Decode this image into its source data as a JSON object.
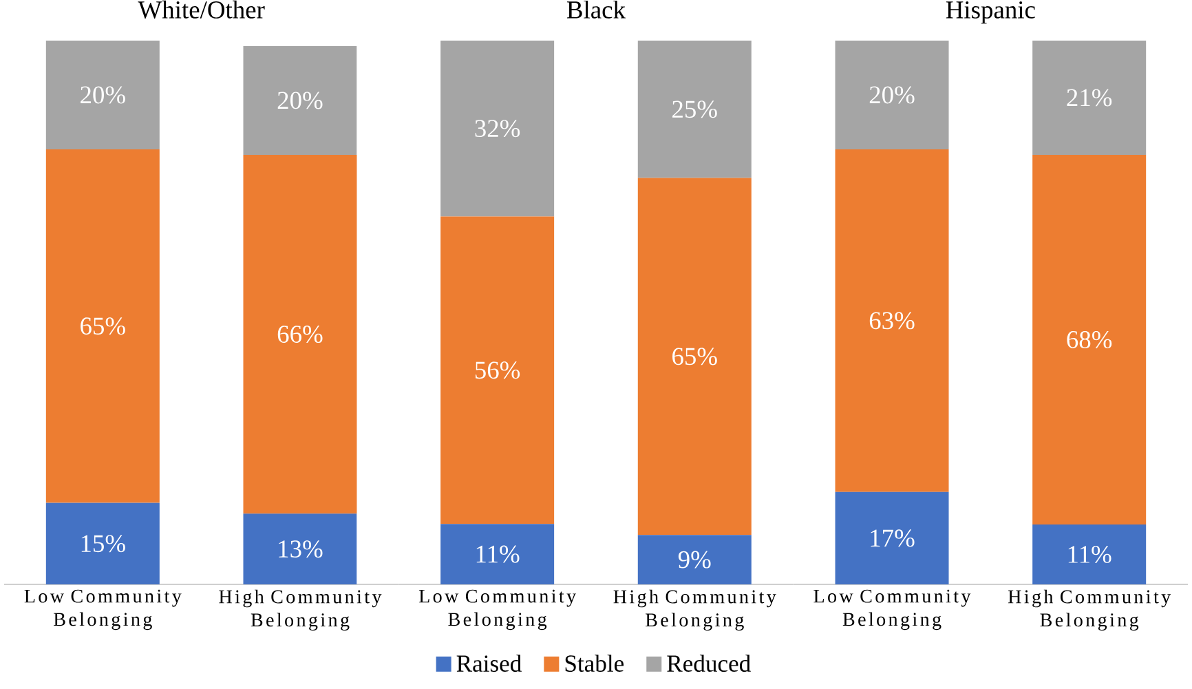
{
  "chart_data": [
    {
      "type": "bar",
      "title": "White/Other",
      "stacked": true,
      "categories": [
        "Low Community Belonging",
        "High Community Belonging"
      ],
      "series": [
        {
          "color": "#4472c4",
          "values": [
            15,
            13
          ],
          "value_labels": [
            "15%",
            "13%"
          ]
        },
        {
          "color": "#ed7d31",
          "values": [
            65,
            66
          ],
          "value_labels": [
            "65%",
            "66%"
          ]
        },
        {
          "color": "#a5a5a5",
          "values": [
            20,
            20
          ],
          "value_labels": [
            "20%",
            "20%"
          ]
        }
      ]
    },
    {
      "type": "bar",
      "title": "Black",
      "stacked": true,
      "legend": "bottom",
      "categories": [
        "Low Community Belonging",
        "High Community Belonging"
      ],
      "series": [
        {
          "name": "Raised",
          "color": "#4472c4",
          "values": [
            11,
            9
          ],
          "value_labels": [
            "11%",
            "9%"
          ]
        },
        {
          "name": "Stable",
          "color": "#ed7d31",
          "values": [
            56,
            65
          ],
          "value_labels": [
            "56%",
            "65%"
          ]
        },
        {
          "name": "Reduced",
          "color": "#a5a5a5",
          "values": [
            32,
            25
          ],
          "value_labels": [
            "32%",
            "25%"
          ]
        }
      ]
    },
    {
      "type": "bar",
      "title": "Hispanic",
      "stacked": true,
      "categories": [
        "Low Community Belonging",
        "High Community Belonging"
      ],
      "series": [
        {
          "color": "#4472c4",
          "values": [
            17,
            11
          ],
          "value_labels": [
            "17%",
            "11%"
          ]
        },
        {
          "color": "#ed7d31",
          "values": [
            63,
            68
          ],
          "value_labels": [
            "63%",
            "68%"
          ]
        },
        {
          "color": "#a5a5a5",
          "values": [
            20,
            21
          ],
          "value_labels": [
            "20%",
            "21%"
          ]
        }
      ]
    }
  ]
}
